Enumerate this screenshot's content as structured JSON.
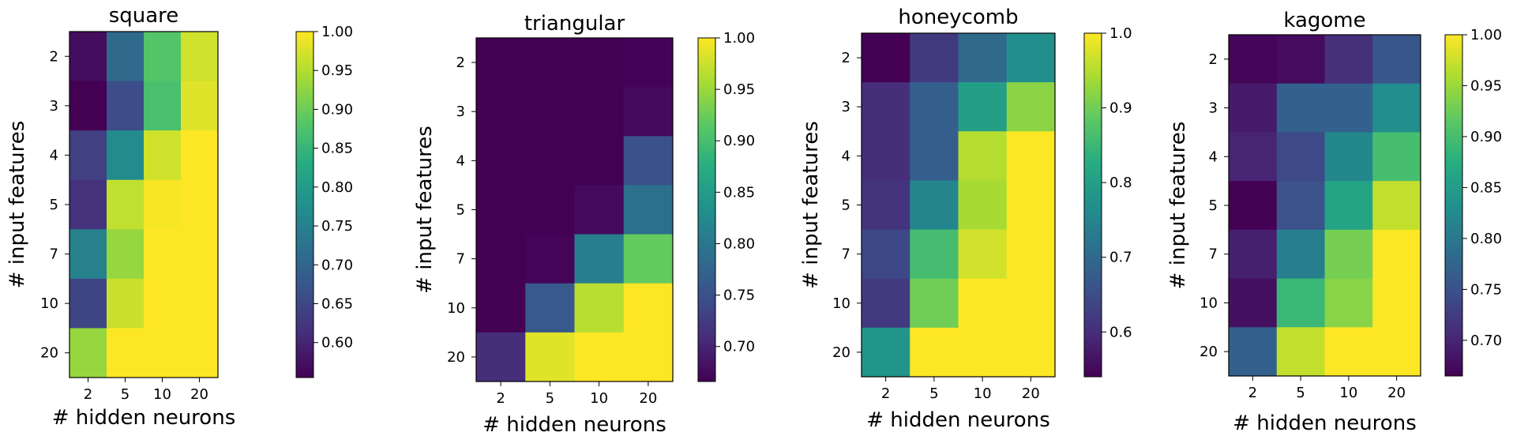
{
  "chart_data": [
    {
      "type": "heatmap",
      "title": "square",
      "xlabel": "# hidden neurons",
      "ylabel": "# input features",
      "x_categories": [
        "2",
        "5",
        "10",
        "20"
      ],
      "y_categories": [
        "2",
        "3",
        "4",
        "5",
        "7",
        "10",
        "20"
      ],
      "values": [
        [
          0.57,
          0.71,
          0.88,
          0.97
        ],
        [
          0.555,
          0.66,
          0.87,
          0.98
        ],
        [
          0.64,
          0.77,
          0.97,
          1.0
        ],
        [
          0.62,
          0.96,
          0.995,
          1.0
        ],
        [
          0.75,
          0.93,
          1.0,
          1.0
        ],
        [
          0.65,
          0.965,
          1.0,
          1.0
        ],
        [
          0.93,
          1.0,
          1.0,
          1.0
        ]
      ],
      "colorbar": {
        "vmin": 0.555,
        "vmax": 1.0,
        "ticks": [
          "0.60",
          "0.65",
          "0.70",
          "0.75",
          "0.80",
          "0.85",
          "0.90",
          "0.95",
          "1.00"
        ]
      }
    },
    {
      "type": "heatmap",
      "title": "triangular",
      "xlabel": "# hidden neurons",
      "ylabel": "# input features",
      "x_categories": [
        "2",
        "5",
        "10",
        "20"
      ],
      "y_categories": [
        "2",
        "3",
        "4",
        "5",
        "7",
        "10",
        "20"
      ],
      "values": [
        [
          0.666,
          0.666,
          0.666,
          0.668
        ],
        [
          0.666,
          0.666,
          0.666,
          0.675
        ],
        [
          0.666,
          0.666,
          0.666,
          0.75
        ],
        [
          0.666,
          0.666,
          0.675,
          0.79
        ],
        [
          0.666,
          0.67,
          0.81,
          0.92
        ],
        [
          0.666,
          0.76,
          0.965,
          1.0
        ],
        [
          0.71,
          0.985,
          1.0,
          1.0
        ]
      ],
      "colorbar": {
        "vmin": 0.666,
        "vmax": 1.0,
        "ticks": [
          "0.70",
          "0.75",
          "0.80",
          "0.85",
          "0.90",
          "0.95",
          "1.00"
        ]
      }
    },
    {
      "type": "heatmap",
      "title": "honeycomb",
      "xlabel": "# hidden neurons",
      "ylabel": "# input features",
      "x_categories": [
        "2",
        "5",
        "10",
        "20"
      ],
      "y_categories": [
        "2",
        "3",
        "4",
        "5",
        "7",
        "10",
        "20"
      ],
      "values": [
        [
          0.54,
          0.62,
          0.7,
          0.77
        ],
        [
          0.6,
          0.68,
          0.8,
          0.92
        ],
        [
          0.6,
          0.68,
          0.95,
          1.0
        ],
        [
          0.61,
          0.75,
          0.94,
          1.0
        ],
        [
          0.64,
          0.86,
          0.97,
          1.0
        ],
        [
          0.62,
          0.9,
          1.0,
          1.0
        ],
        [
          0.78,
          1.0,
          1.0,
          1.0
        ]
      ],
      "colorbar": {
        "vmin": 0.54,
        "vmax": 1.0,
        "ticks": [
          "0.6",
          "0.7",
          "0.8",
          "0.9",
          "1.0"
        ]
      }
    },
    {
      "type": "heatmap",
      "title": "kagome",
      "xlabel": "# hidden neurons",
      "ylabel": "# input features",
      "x_categories": [
        "2",
        "5",
        "10",
        "20"
      ],
      "y_categories": [
        "2",
        "3",
        "4",
        "5",
        "7",
        "10",
        "20"
      ],
      "values": [
        [
          0.67,
          0.675,
          0.71,
          0.755
        ],
        [
          0.69,
          0.77,
          0.77,
          0.83
        ],
        [
          0.7,
          0.74,
          0.82,
          0.9
        ],
        [
          0.665,
          0.75,
          0.86,
          0.97
        ],
        [
          0.695,
          0.81,
          0.93,
          1.0
        ],
        [
          0.68,
          0.89,
          0.94,
          1.0
        ],
        [
          0.77,
          0.97,
          1.0,
          1.0
        ]
      ],
      "colorbar": {
        "vmin": 0.665,
        "vmax": 1.0,
        "ticks": [
          "0.70",
          "0.75",
          "0.80",
          "0.85",
          "0.90",
          "0.95",
          "1.00"
        ]
      }
    }
  ]
}
